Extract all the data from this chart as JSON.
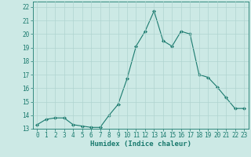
{
  "x": [
    0,
    1,
    2,
    3,
    4,
    5,
    6,
    7,
    8,
    9,
    10,
    11,
    12,
    13,
    14,
    15,
    16,
    17,
    18,
    19,
    20,
    21,
    22,
    23
  ],
  "y": [
    13.3,
    13.7,
    13.8,
    13.8,
    13.3,
    13.2,
    13.1,
    13.1,
    14.0,
    14.8,
    16.7,
    19.1,
    20.2,
    21.7,
    19.5,
    19.1,
    20.2,
    20.0,
    17.0,
    16.8,
    16.1,
    15.3,
    14.5,
    14.5
  ],
  "line_color": "#1a7a6e",
  "marker": "D",
  "marker_size": 2.0,
  "bg_color": "#cce9e5",
  "grid_color": "#b0d4d0",
  "xlabel": "Humidex (Indice chaleur)",
  "xlim": [
    -0.5,
    23.5
  ],
  "ylim": [
    13.0,
    22.4
  ],
  "yticks": [
    13,
    14,
    15,
    16,
    17,
    18,
    19,
    20,
    21,
    22
  ],
  "xticks": [
    0,
    1,
    2,
    3,
    4,
    5,
    6,
    7,
    8,
    9,
    10,
    11,
    12,
    13,
    14,
    15,
    16,
    17,
    18,
    19,
    20,
    21,
    22,
    23
  ],
  "tick_fontsize": 5.5,
  "xlabel_fontsize": 6.5,
  "linewidth": 0.8
}
